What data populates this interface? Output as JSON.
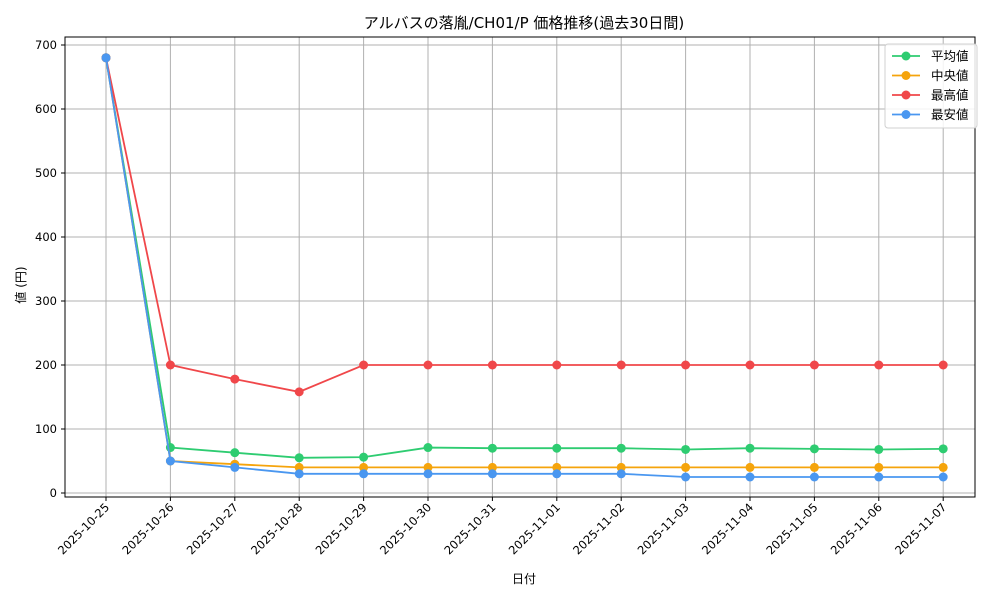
{
  "chart_data": {
    "type": "line",
    "title": "アルバスの落胤/CH01/P 価格推移(過去30日間)",
    "xlabel": "日付",
    "ylabel": "値 (円)",
    "ylim": [
      -10,
      712
    ],
    "yticks": [
      0,
      100,
      200,
      300,
      400,
      500,
      600,
      700
    ],
    "grid": true,
    "legend_position": "upper right",
    "categories": [
      "2025-10-25",
      "2025-10-26",
      "2025-10-27",
      "2025-10-28",
      "2025-10-29",
      "2025-10-30",
      "2025-10-31",
      "2025-11-01",
      "2025-11-02",
      "2025-11-03",
      "2025-11-04",
      "2025-11-05",
      "2025-11-06",
      "2025-11-07"
    ],
    "series": [
      {
        "name": "平均値",
        "color": "#2ecc71",
        "values": [
          680,
          71,
          63,
          55,
          56,
          71,
          70,
          70,
          70,
          68,
          70,
          69,
          68,
          69
        ]
      },
      {
        "name": "中央値",
        "color": "#f5a40c",
        "values": [
          680,
          50,
          45,
          40,
          40,
          40,
          40,
          40,
          40,
          40,
          40,
          40,
          40,
          40
        ]
      },
      {
        "name": "最高値",
        "color": "#f0474a",
        "values": [
          680,
          200,
          178,
          158,
          200,
          200,
          200,
          200,
          200,
          200,
          200,
          200,
          200,
          200
        ]
      },
      {
        "name": "最安値",
        "color": "#4a97f0",
        "values": [
          680,
          50,
          40,
          30,
          30,
          30,
          30,
          30,
          30,
          25,
          25,
          25,
          25,
          25
        ]
      }
    ]
  }
}
